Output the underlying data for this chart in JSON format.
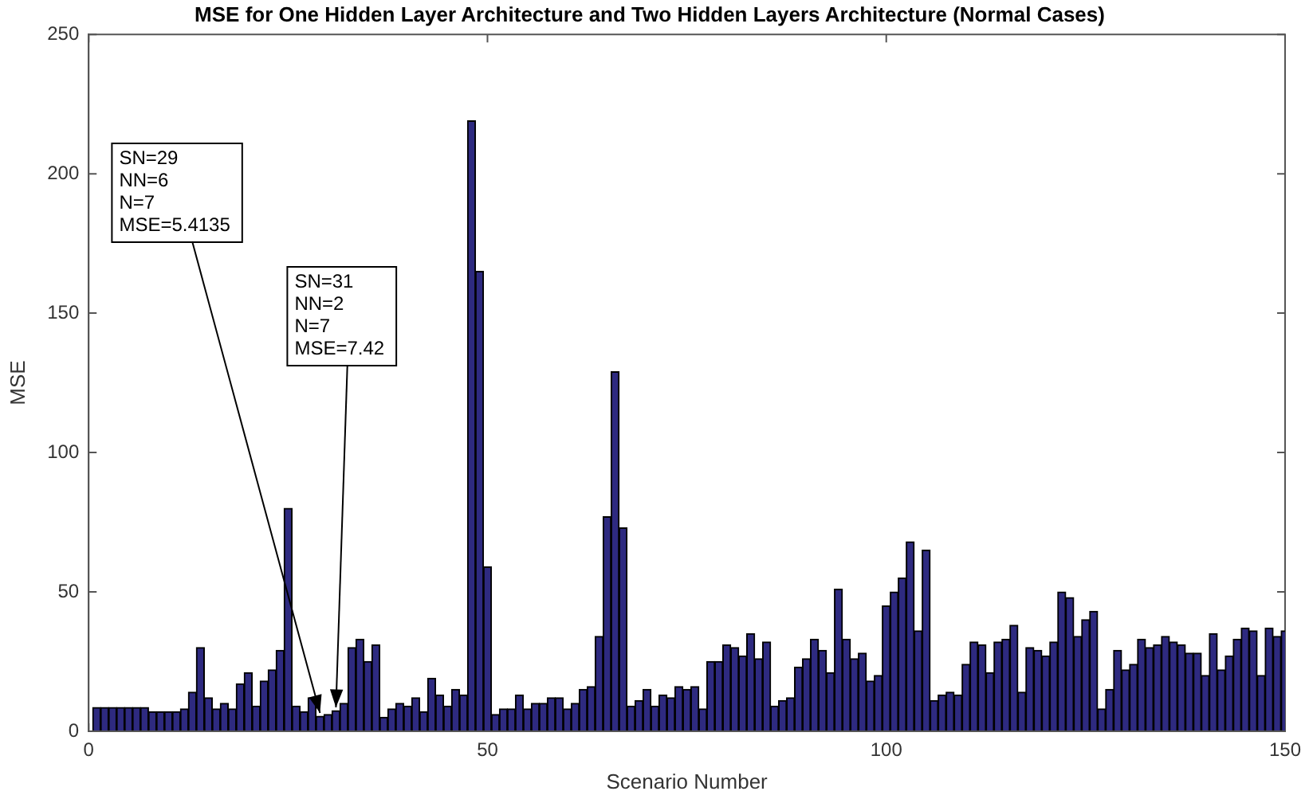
{
  "chart_data": {
    "type": "bar",
    "title": "MSE for One Hidden Layer Architecture and Two Hidden Layers Architecture (Normal Cases)",
    "xlabel": "Scenario Number",
    "ylabel": "MSE",
    "x": [
      1,
      2,
      3,
      4,
      5,
      6,
      7,
      8,
      9,
      10,
      11,
      12,
      13,
      14,
      15,
      16,
      17,
      18,
      19,
      20,
      21,
      22,
      23,
      24,
      25,
      26,
      27,
      28,
      29,
      30,
      31,
      32,
      33,
      34,
      35,
      36,
      37,
      38,
      39,
      40,
      41,
      42,
      43,
      44,
      45,
      46,
      47,
      48,
      49,
      50,
      51,
      52,
      53,
      54,
      55,
      56,
      57,
      58,
      59,
      60,
      61,
      62,
      63,
      64,
      65,
      66,
      67,
      68,
      69,
      70,
      71,
      72,
      73,
      74,
      75,
      76,
      77,
      78,
      79,
      80,
      81,
      82,
      83,
      84,
      85,
      86,
      87,
      88,
      89,
      90,
      91,
      92,
      93,
      94,
      95,
      96,
      97,
      98,
      99,
      100,
      101,
      102,
      103,
      104,
      105,
      106,
      107,
      108,
      109,
      110,
      111,
      112,
      113,
      114,
      115,
      116,
      117,
      118,
      119,
      120,
      121,
      122,
      123,
      124,
      125,
      126,
      127,
      128,
      129,
      130,
      131,
      132,
      133,
      134,
      135,
      136,
      137,
      138,
      139,
      140,
      141,
      142,
      143,
      144,
      145,
      146,
      147,
      148,
      149,
      150
    ],
    "values": [
      8.5,
      8.5,
      8.5,
      8.5,
      8.5,
      8.5,
      8.5,
      7,
      7,
      7,
      7,
      8,
      14,
      30,
      12,
      8,
      10,
      8,
      17,
      21,
      9,
      18,
      22,
      29,
      80,
      9,
      7,
      12,
      5.4135,
      6,
      7.42,
      10,
      30,
      33,
      25,
      31,
      5,
      8,
      10,
      9,
      12,
      7,
      19,
      13,
      9,
      15,
      13,
      219,
      165,
      59,
      6,
      8,
      8,
      13,
      8,
      10,
      10,
      12,
      12,
      8,
      10,
      15,
      16,
      34,
      77,
      129,
      73,
      9,
      11,
      15,
      9,
      13,
      12,
      16,
      15,
      16,
      8,
      25,
      25,
      31,
      30,
      27,
      35,
      26,
      32,
      9,
      11,
      12,
      23,
      26,
      33,
      29,
      21,
      51,
      33,
      26,
      28,
      18,
      20,
      45,
      50,
      55,
      68,
      36,
      65,
      11,
      13,
      14,
      13,
      24,
      32,
      31,
      21,
      32,
      33,
      38,
      14,
      30,
      29,
      27,
      32,
      50,
      48,
      34,
      40,
      43,
      8,
      15,
      29,
      22,
      24,
      33,
      30,
      31,
      34,
      32,
      31,
      28,
      28,
      20,
      35,
      22,
      27,
      33,
      37,
      36,
      20,
      37,
      34,
      36
    ],
    "color": "#2e2a80",
    "xlim": [
      0,
      150
    ],
    "xticks": [
      0,
      50,
      100,
      150
    ],
    "ylim": [
      0,
      250
    ],
    "yticks": [
      0,
      50,
      100,
      150,
      200,
      250
    ],
    "grid": false,
    "legend": false,
    "annotations": [
      {
        "text": "SN=29\nNN=6\nN=7\nMSE=5.4135",
        "x": 29,
        "y": 5.4135
      },
      {
        "text": "SN=31\nNN=2\nN=7\nMSE=7.42",
        "x": 31,
        "y": 7.42
      }
    ]
  }
}
